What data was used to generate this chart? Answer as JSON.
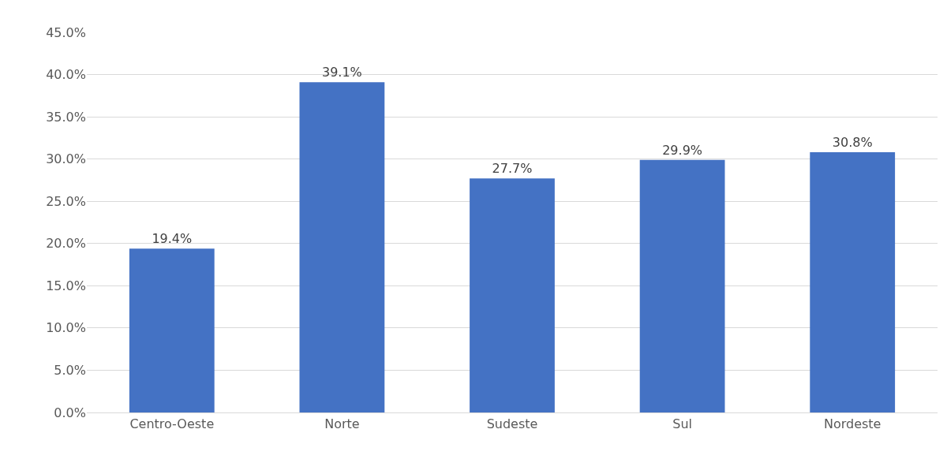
{
  "chart_data": {
    "type": "bar",
    "categories": [
      "Centro-Oeste",
      "Norte",
      "Sudeste",
      "Sul",
      "Nordeste"
    ],
    "values": [
      19.4,
      39.1,
      27.7,
      29.9,
      30.8
    ],
    "value_labels": [
      "19.4%",
      "39.1%",
      "27.7%",
      "29.9%",
      "30.8%"
    ],
    "color": "#4472c4",
    "ylim": [
      0,
      45
    ],
    "yticks": [
      {
        "value": 0,
        "label": "0.0%"
      },
      {
        "value": 5,
        "label": "5.0%"
      },
      {
        "value": 10,
        "label": "10.0%"
      },
      {
        "value": 15,
        "label": "15.0%"
      },
      {
        "value": 20,
        "label": "20.0%"
      },
      {
        "value": 25,
        "label": "25.0%"
      },
      {
        "value": 30,
        "label": "30.0%"
      },
      {
        "value": 35,
        "label": "35.0%"
      },
      {
        "value": 40,
        "label": "40.0%"
      },
      {
        "value": 45,
        "label": "45.0%"
      }
    ],
    "grid": "y"
  }
}
